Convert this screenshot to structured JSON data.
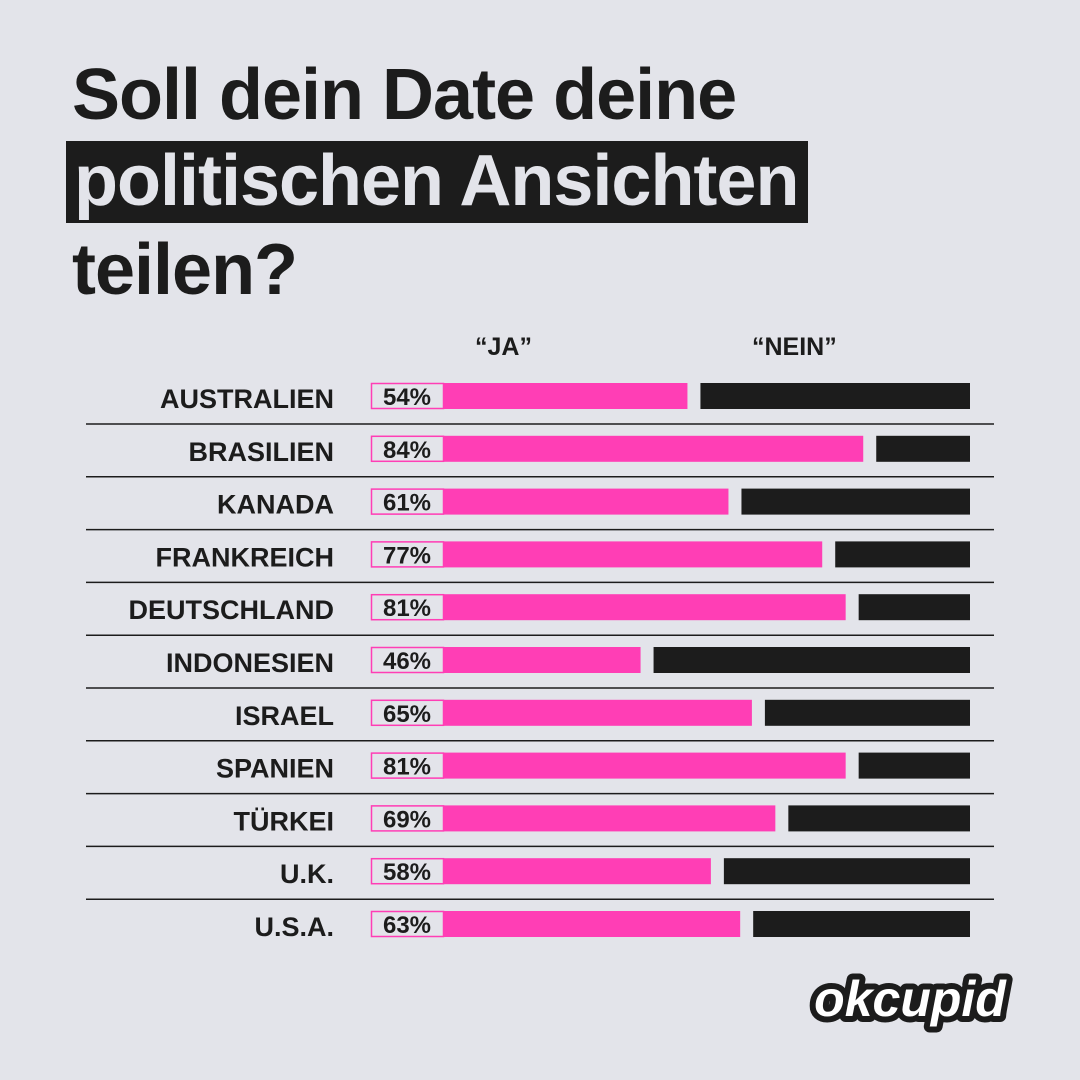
{
  "title": {
    "line1": "Soll dein Date deine",
    "highlight": "politischen Ansichten",
    "line3": "teilen?"
  },
  "columns": {
    "yes": "“JA”",
    "no": "“NEIN”"
  },
  "brand": "okcupid",
  "colors": {
    "yes": "#ff3eb5",
    "no": "#1c1c1c",
    "background": "#e3e4ea",
    "text": "#1c1c1c"
  },
  "chart_data": {
    "type": "bar",
    "orientation": "horizontal",
    "stacked": true,
    "categories": [
      "AUSTRALIEN",
      "BRASILIEN",
      "KANADA",
      "FRANKREICH",
      "DEUTSCHLAND",
      "INDONESIEN",
      "ISRAEL",
      "SPANIEN",
      "TÜRKEI",
      "U.K.",
      "U.S.A."
    ],
    "series": [
      {
        "name": "“JA”",
        "values": [
          54,
          84,
          61,
          77,
          81,
          46,
          65,
          81,
          69,
          58,
          63
        ]
      },
      {
        "name": "“NEIN”",
        "values": [
          46,
          16,
          39,
          23,
          19,
          54,
          35,
          19,
          31,
          42,
          37
        ]
      }
    ],
    "data_labels": [
      "54%",
      "84%",
      "61%",
      "77%",
      "81%",
      "46%",
      "65%",
      "81%",
      "69%",
      "58%",
      "63%"
    ],
    "unit": "%",
    "xlim": [
      0,
      100
    ],
    "grid": false,
    "legend": "top"
  }
}
